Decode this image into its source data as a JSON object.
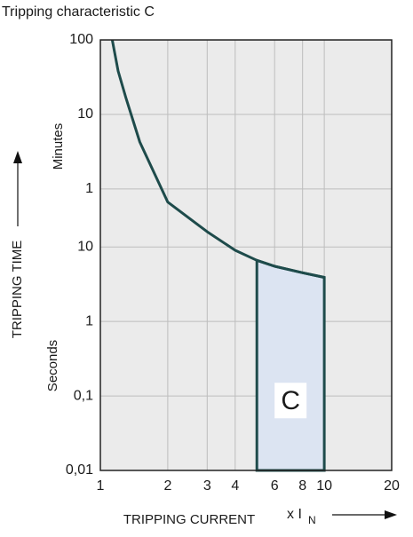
{
  "chart_data": {
    "type": "line",
    "title": "Tripping characteristic C",
    "y_label": "TRIPPING TIME",
    "y_unit_upper": "Minutes",
    "y_unit_lower": "Seconds",
    "x_label": "TRIPPING CURRENT",
    "x_unit": "x I",
    "x_unit_sub": "N",
    "log_x": true,
    "log_y": true,
    "grid": true,
    "xlim": [
      1,
      20
    ],
    "xticks": [
      1,
      2,
      3,
      4,
      6,
      8,
      10,
      20
    ],
    "ylim": [
      0.01,
      6000
    ],
    "yticks": [
      {
        "value": 6000,
        "label": "100"
      },
      {
        "value": 600,
        "label": "10"
      },
      {
        "value": 60,
        "label": "1"
      },
      10,
      1,
      {
        "value": 0.1,
        "label": "0,1"
      },
      {
        "value": 0.01,
        "label": "0,01"
      }
    ],
    "series": [
      {
        "color": "#1e4b4b",
        "x": [
          1.13,
          1.2,
          1.3,
          1.5,
          2,
          3,
          4,
          5,
          6,
          8,
          10
        ],
        "values": [
          6000,
          2300,
          1008,
          256,
          40,
          16,
          9,
          6.6,
          5.5,
          4.5,
          3.9
        ]
      }
    ],
    "band": {
      "label": "C",
      "color": "#dce4f2",
      "x": [
        5,
        6,
        8,
        10
      ],
      "values": [
        6.6,
        5.5,
        4.5,
        3.9
      ]
    }
  }
}
